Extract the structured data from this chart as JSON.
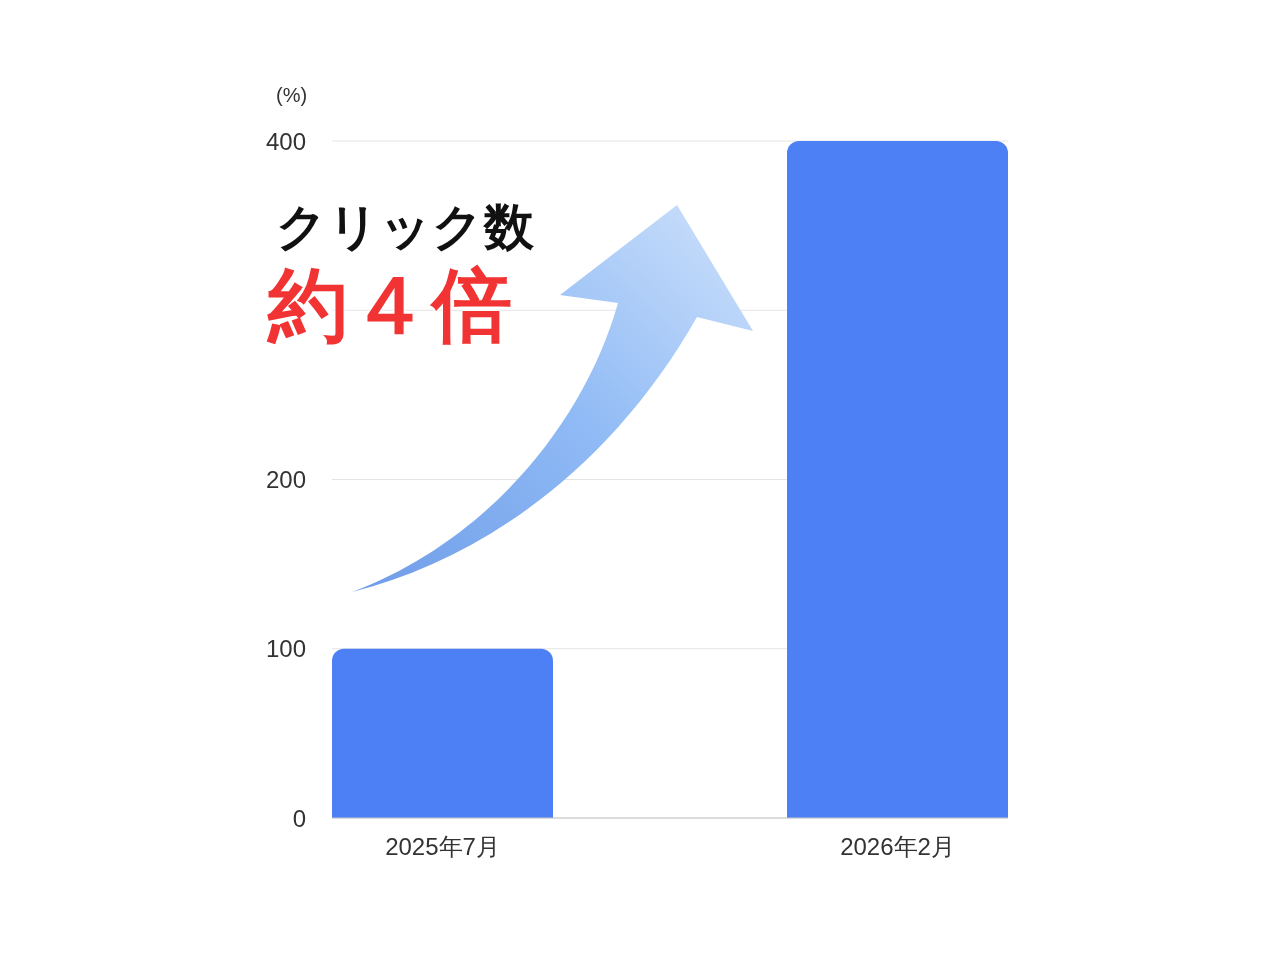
{
  "chart_data": {
    "type": "bar",
    "ylabel": "(%)",
    "categories": [
      "2025年7月",
      "2026年2月"
    ],
    "values": [
      100,
      400
    ],
    "color": "#4d7ff5",
    "ylim": [
      0,
      400
    ],
    "yticks": [
      0,
      100,
      200,
      {
        "value": 300,
        "label": null
      },
      400
    ],
    "grid": "y",
    "annotations": [
      "クリック数",
      "約４倍"
    ]
  }
}
